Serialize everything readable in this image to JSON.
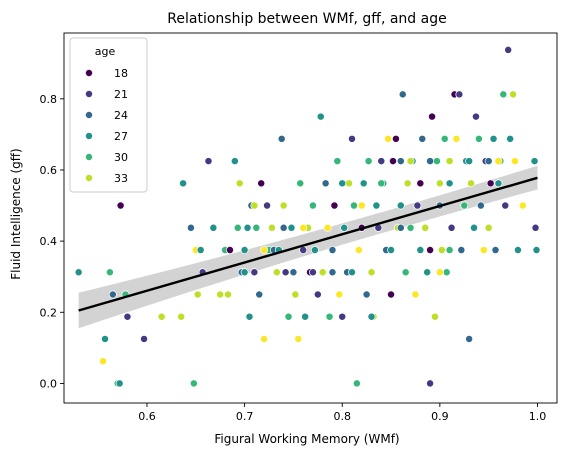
{
  "chart_data": {
    "type": "scatter",
    "title": "Relationship between WMf, gff, and age",
    "xlabel": "Figural Working Memory (WMf)",
    "ylabel": "Fluid Intelligence (gff)",
    "xlim": [
      0.515,
      1.02
    ],
    "ylim": [
      -0.055,
      0.985
    ],
    "xticks": [
      0.6,
      0.7,
      0.8,
      0.9,
      1.0
    ],
    "xtick_labels": [
      "0.6",
      "0.7",
      "0.8",
      "0.9",
      "1.0"
    ],
    "yticks": [
      0.0,
      0.2,
      0.4,
      0.6,
      0.8
    ],
    "ytick_labels": [
      "0.0",
      "0.2",
      "0.4",
      "0.6",
      "0.8"
    ],
    "grid": false,
    "legend": {
      "title": "age",
      "placement": "top-left",
      "entries": [
        {
          "label": "18",
          "color": "#440154"
        },
        {
          "label": "21",
          "color": "#443a83"
        },
        {
          "label": "24",
          "color": "#31688e"
        },
        {
          "label": "27",
          "color": "#21918c"
        },
        {
          "label": "30",
          "color": "#35b779"
        },
        {
          "label": "33",
          "color": "#bddf26"
        }
      ]
    },
    "regression": {
      "x": [
        0.53,
        1.0
      ],
      "y": [
        0.205,
        0.578
      ],
      "ci_upper": [
        0.255,
        0.612
      ],
      "ci_mid_upper": 0.412,
      "ci_lower": [
        0.155,
        0.545
      ],
      "ci_mid_lower": 0.372,
      "line_color": "#000000",
      "band_color": "#c0c0c0"
    },
    "points": [
      {
        "x": 0.53,
        "y": 0.3125,
        "c": "#21918c"
      },
      {
        "x": 0.555,
        "y": 0.0625,
        "c": "#fde725"
      },
      {
        "x": 0.557,
        "y": 0.125,
        "c": "#21918c"
      },
      {
        "x": 0.562,
        "y": 0.3125,
        "c": "#35b779"
      },
      {
        "x": 0.565,
        "y": 0.25,
        "c": "#31688e"
      },
      {
        "x": 0.57,
        "y": 0.0,
        "c": "#35b779"
      },
      {
        "x": 0.572,
        "y": 0.0,
        "c": "#21918c"
      },
      {
        "x": 0.573,
        "y": 0.5,
        "c": "#440154"
      },
      {
        "x": 0.578,
        "y": 0.25,
        "c": "#35b779"
      },
      {
        "x": 0.58,
        "y": 0.1875,
        "c": "#443a83"
      },
      {
        "x": 0.597,
        "y": 0.125,
        "c": "#443a83"
      },
      {
        "x": 0.615,
        "y": 0.1875,
        "c": "#bddf26"
      },
      {
        "x": 0.635,
        "y": 0.1875,
        "c": "#bddf26"
      },
      {
        "x": 0.637,
        "y": 0.5625,
        "c": "#21918c"
      },
      {
        "x": 0.645,
        "y": 0.4375,
        "c": "#31688e"
      },
      {
        "x": 0.648,
        "y": 0.0,
        "c": "#35b779"
      },
      {
        "x": 0.65,
        "y": 0.375,
        "c": "#fde725"
      },
      {
        "x": 0.652,
        "y": 0.25,
        "c": "#bddf26"
      },
      {
        "x": 0.655,
        "y": 0.375,
        "c": "#21918c"
      },
      {
        "x": 0.657,
        "y": 0.3125,
        "c": "#443a83"
      },
      {
        "x": 0.663,
        "y": 0.625,
        "c": "#443a83"
      },
      {
        "x": 0.668,
        "y": 0.4375,
        "c": "#21918c"
      },
      {
        "x": 0.675,
        "y": 0.25,
        "c": "#bddf26"
      },
      {
        "x": 0.68,
        "y": 0.375,
        "c": "#35b779"
      },
      {
        "x": 0.683,
        "y": 0.25,
        "c": "#bddf26"
      },
      {
        "x": 0.685,
        "y": 0.375,
        "c": "#440154"
      },
      {
        "x": 0.69,
        "y": 0.625,
        "c": "#21918c"
      },
      {
        "x": 0.693,
        "y": 0.4375,
        "c": "#35b779"
      },
      {
        "x": 0.695,
        "y": 0.5625,
        "c": "#bddf26"
      },
      {
        "x": 0.697,
        "y": 0.3125,
        "c": "#31688e"
      },
      {
        "x": 0.7,
        "y": 0.3125,
        "c": "#21918c"
      },
      {
        "x": 0.703,
        "y": 0.4375,
        "c": "#21918c"
      },
      {
        "x": 0.705,
        "y": 0.1875,
        "c": "#21918c"
      },
      {
        "x": 0.707,
        "y": 0.5,
        "c": "#31688e"
      },
      {
        "x": 0.71,
        "y": 0.5,
        "c": "#bddf26"
      },
      {
        "x": 0.712,
        "y": 0.4375,
        "c": "#35b779"
      },
      {
        "x": 0.715,
        "y": 0.25,
        "c": "#31688e"
      },
      {
        "x": 0.717,
        "y": 0.5625,
        "c": "#440154"
      },
      {
        "x": 0.72,
        "y": 0.125,
        "c": "#fde725"
      },
      {
        "x": 0.723,
        "y": 0.5,
        "c": "#443a83"
      },
      {
        "x": 0.725,
        "y": 0.375,
        "c": "#35b779"
      },
      {
        "x": 0.728,
        "y": 0.4375,
        "c": "#bddf26"
      },
      {
        "x": 0.73,
        "y": 0.375,
        "c": "#31688e"
      },
      {
        "x": 0.733,
        "y": 0.3125,
        "c": "#bddf26"
      },
      {
        "x": 0.735,
        "y": 0.375,
        "c": "#21918c"
      },
      {
        "x": 0.738,
        "y": 0.6875,
        "c": "#31688e"
      },
      {
        "x": 0.74,
        "y": 0.5,
        "c": "#bddf26"
      },
      {
        "x": 0.742,
        "y": 0.3125,
        "c": "#443a83"
      },
      {
        "x": 0.745,
        "y": 0.1875,
        "c": "#35b779"
      },
      {
        "x": 0.748,
        "y": 0.4375,
        "c": "#21918c"
      },
      {
        "x": 0.75,
        "y": 0.3125,
        "c": "#31688e"
      },
      {
        "x": 0.752,
        "y": 0.25,
        "c": "#bddf26"
      },
      {
        "x": 0.755,
        "y": 0.125,
        "c": "#fde725"
      },
      {
        "x": 0.757,
        "y": 0.5625,
        "c": "#35b779"
      },
      {
        "x": 0.76,
        "y": 0.375,
        "c": "#443a83"
      },
      {
        "x": 0.762,
        "y": 0.1875,
        "c": "#21918c"
      },
      {
        "x": 0.765,
        "y": 0.4375,
        "c": "#bddf26"
      },
      {
        "x": 0.767,
        "y": 0.3125,
        "c": "#440154"
      },
      {
        "x": 0.77,
        "y": 0.5,
        "c": "#35b779"
      },
      {
        "x": 0.772,
        "y": 0.375,
        "c": "#21918c"
      },
      {
        "x": 0.775,
        "y": 0.25,
        "c": "#443a83"
      },
      {
        "x": 0.778,
        "y": 0.75,
        "c": "#21918c"
      },
      {
        "x": 0.78,
        "y": 0.3125,
        "c": "#bddf26"
      },
      {
        "x": 0.783,
        "y": 0.5625,
        "c": "#31688e"
      },
      {
        "x": 0.785,
        "y": 0.4375,
        "c": "#fde725"
      },
      {
        "x": 0.787,
        "y": 0.1875,
        "c": "#35b779"
      },
      {
        "x": 0.79,
        "y": 0.375,
        "c": "#31688e"
      },
      {
        "x": 0.792,
        "y": 0.5,
        "c": "#440154"
      },
      {
        "x": 0.795,
        "y": 0.625,
        "c": "#35b779"
      },
      {
        "x": 0.797,
        "y": 0.25,
        "c": "#fde725"
      },
      {
        "x": 0.8,
        "y": 0.1875,
        "c": "#443a83"
      },
      {
        "x": 0.802,
        "y": 0.4375,
        "c": "#21918c"
      },
      {
        "x": 0.805,
        "y": 0.3125,
        "c": "#31688e"
      },
      {
        "x": 0.807,
        "y": 0.5625,
        "c": "#bddf26"
      },
      {
        "x": 0.81,
        "y": 0.6875,
        "c": "#443a83"
      },
      {
        "x": 0.812,
        "y": 0.5,
        "c": "#35b779"
      },
      {
        "x": 0.815,
        "y": 0.0,
        "c": "#35b779"
      },
      {
        "x": 0.817,
        "y": 0.375,
        "c": "#fde725"
      },
      {
        "x": 0.82,
        "y": 0.4375,
        "c": "#440154"
      },
      {
        "x": 0.822,
        "y": 0.5625,
        "c": "#21918c"
      },
      {
        "x": 0.825,
        "y": 0.25,
        "c": "#31688e"
      },
      {
        "x": 0.827,
        "y": 0.625,
        "c": "#35b779"
      },
      {
        "x": 0.83,
        "y": 0.3125,
        "c": "#bddf26"
      },
      {
        "x": 0.832,
        "y": 0.1875,
        "c": "#bddf26"
      },
      {
        "x": 0.835,
        "y": 0.5,
        "c": "#21918c"
      },
      {
        "x": 0.837,
        "y": 0.4375,
        "c": "#443a83"
      },
      {
        "x": 0.84,
        "y": 0.625,
        "c": "#443a83"
      },
      {
        "x": 0.842,
        "y": 0.5625,
        "c": "#21918c"
      },
      {
        "x": 0.845,
        "y": 0.375,
        "c": "#31688e"
      },
      {
        "x": 0.847,
        "y": 0.6875,
        "c": "#fde725"
      },
      {
        "x": 0.85,
        "y": 0.25,
        "c": "#440154"
      },
      {
        "x": 0.852,
        "y": 0.625,
        "c": "#440154"
      },
      {
        "x": 0.855,
        "y": 0.6875,
        "c": "#440154"
      },
      {
        "x": 0.857,
        "y": 0.4375,
        "c": "#bddf26"
      },
      {
        "x": 0.86,
        "y": 0.5,
        "c": "#21918c"
      },
      {
        "x": 0.862,
        "y": 0.8125,
        "c": "#31688e"
      },
      {
        "x": 0.865,
        "y": 0.3125,
        "c": "#35b779"
      },
      {
        "x": 0.867,
        "y": 0.5625,
        "c": "#bddf26"
      },
      {
        "x": 0.87,
        "y": 0.4375,
        "c": "#35b779"
      },
      {
        "x": 0.872,
        "y": 0.625,
        "c": "#21918c"
      },
      {
        "x": 0.875,
        "y": 0.25,
        "c": "#fde725"
      },
      {
        "x": 0.877,
        "y": 0.5,
        "c": "#443a83"
      },
      {
        "x": 0.88,
        "y": 0.375,
        "c": "#21918c"
      },
      {
        "x": 0.882,
        "y": 0.6875,
        "c": "#31688e"
      },
      {
        "x": 0.885,
        "y": 0.4375,
        "c": "#bddf26"
      },
      {
        "x": 0.887,
        "y": 0.3125,
        "c": "#21918c"
      },
      {
        "x": 0.89,
        "y": 0.0,
        "c": "#443a83"
      },
      {
        "x": 0.892,
        "y": 0.75,
        "c": "#440154"
      },
      {
        "x": 0.895,
        "y": 0.1875,
        "c": "#bddf26"
      },
      {
        "x": 0.897,
        "y": 0.625,
        "c": "#35b779"
      },
      {
        "x": 0.9,
        "y": 0.5,
        "c": "#31688e"
      },
      {
        "x": 0.902,
        "y": 0.375,
        "c": "#bddf26"
      },
      {
        "x": 0.905,
        "y": 0.6875,
        "c": "#35b779"
      },
      {
        "x": 0.907,
        "y": 0.3125,
        "c": "#35b779"
      },
      {
        "x": 0.91,
        "y": 0.5625,
        "c": "#21918c"
      },
      {
        "x": 0.912,
        "y": 0.4375,
        "c": "#443a83"
      },
      {
        "x": 0.915,
        "y": 0.8125,
        "c": "#440154"
      },
      {
        "x": 0.917,
        "y": 0.6875,
        "c": "#fde725"
      },
      {
        "x": 0.92,
        "y": 0.8125,
        "c": "#443a83"
      },
      {
        "x": 0.922,
        "y": 0.375,
        "c": "#31688e"
      },
      {
        "x": 0.925,
        "y": 0.5,
        "c": "#35b779"
      },
      {
        "x": 0.927,
        "y": 0.625,
        "c": "#21918c"
      },
      {
        "x": 0.93,
        "y": 0.125,
        "c": "#31688e"
      },
      {
        "x": 0.932,
        "y": 0.5625,
        "c": "#bddf26"
      },
      {
        "x": 0.935,
        "y": 0.4375,
        "c": "#21918c"
      },
      {
        "x": 0.937,
        "y": 0.75,
        "c": "#443a83"
      },
      {
        "x": 0.94,
        "y": 0.6875,
        "c": "#35b779"
      },
      {
        "x": 0.942,
        "y": 0.5,
        "c": "#31688e"
      },
      {
        "x": 0.945,
        "y": 0.375,
        "c": "#fde725"
      },
      {
        "x": 0.947,
        "y": 0.625,
        "c": "#443a83"
      },
      {
        "x": 0.95,
        "y": 0.4375,
        "c": "#bddf26"
      },
      {
        "x": 0.952,
        "y": 0.5625,
        "c": "#440154"
      },
      {
        "x": 0.955,
        "y": 0.6875,
        "c": "#21918c"
      },
      {
        "x": 0.957,
        "y": 0.375,
        "c": "#31688e"
      },
      {
        "x": 0.96,
        "y": 0.5625,
        "c": "#21918c"
      },
      {
        "x": 0.962,
        "y": 0.625,
        "c": "#35b779"
      },
      {
        "x": 0.965,
        "y": 0.8125,
        "c": "#35b779"
      },
      {
        "x": 0.967,
        "y": 0.5,
        "c": "#443a83"
      },
      {
        "x": 0.97,
        "y": 0.9375,
        "c": "#443a83"
      },
      {
        "x": 0.972,
        "y": 0.6875,
        "c": "#21918c"
      },
      {
        "x": 0.975,
        "y": 0.8125,
        "c": "#bddf26"
      },
      {
        "x": 0.977,
        "y": 0.625,
        "c": "#fde725"
      },
      {
        "x": 0.98,
        "y": 0.375,
        "c": "#21918c"
      },
      {
        "x": 0.985,
        "y": 0.5,
        "c": "#fde725"
      },
      {
        "x": 0.997,
        "y": 0.625,
        "c": "#21918c"
      },
      {
        "x": 0.998,
        "y": 0.4375,
        "c": "#443a83"
      },
      {
        "x": 0.999,
        "y": 0.375,
        "c": "#21918c"
      },
      {
        "x": 0.86,
        "y": 0.625,
        "c": "#31688e"
      },
      {
        "x": 0.87,
        "y": 0.625,
        "c": "#bddf26"
      },
      {
        "x": 0.88,
        "y": 0.5625,
        "c": "#440154"
      },
      {
        "x": 0.89,
        "y": 0.625,
        "c": "#31688e"
      },
      {
        "x": 0.9,
        "y": 0.5625,
        "c": "#bddf26"
      },
      {
        "x": 0.91,
        "y": 0.625,
        "c": "#bddf26"
      },
      {
        "x": 0.93,
        "y": 0.625,
        "c": "#21918c"
      },
      {
        "x": 0.95,
        "y": 0.625,
        "c": "#31688e"
      },
      {
        "x": 0.96,
        "y": 0.625,
        "c": "#fde725"
      },
      {
        "x": 0.84,
        "y": 0.5625,
        "c": "#35b779"
      },
      {
        "x": 0.82,
        "y": 0.5,
        "c": "#fde725"
      },
      {
        "x": 0.8,
        "y": 0.5625,
        "c": "#21918c"
      },
      {
        "x": 0.79,
        "y": 0.3125,
        "c": "#31688e"
      },
      {
        "x": 0.77,
        "y": 0.3125,
        "c": "#443a83"
      },
      {
        "x": 0.76,
        "y": 0.4375,
        "c": "#fde725"
      },
      {
        "x": 0.74,
        "y": 0.4375,
        "c": "#31688e"
      },
      {
        "x": 0.72,
        "y": 0.375,
        "c": "#fde725"
      },
      {
        "x": 0.71,
        "y": 0.3125,
        "c": "#443a83"
      },
      {
        "x": 0.7,
        "y": 0.375,
        "c": "#21918c"
      },
      {
        "x": 0.89,
        "y": 0.375,
        "c": "#440154"
      },
      {
        "x": 0.9,
        "y": 0.3125,
        "c": "#fde725"
      },
      {
        "x": 0.91,
        "y": 0.375,
        "c": "#35b779"
      },
      {
        "x": 0.85,
        "y": 0.375,
        "c": "#21918c"
      },
      {
        "x": 0.81,
        "y": 0.3125,
        "c": "#21918c"
      },
      {
        "x": 0.83,
        "y": 0.1875,
        "c": "#21918c"
      },
      {
        "x": 0.86,
        "y": 0.4375,
        "c": "#31688e"
      }
    ]
  }
}
